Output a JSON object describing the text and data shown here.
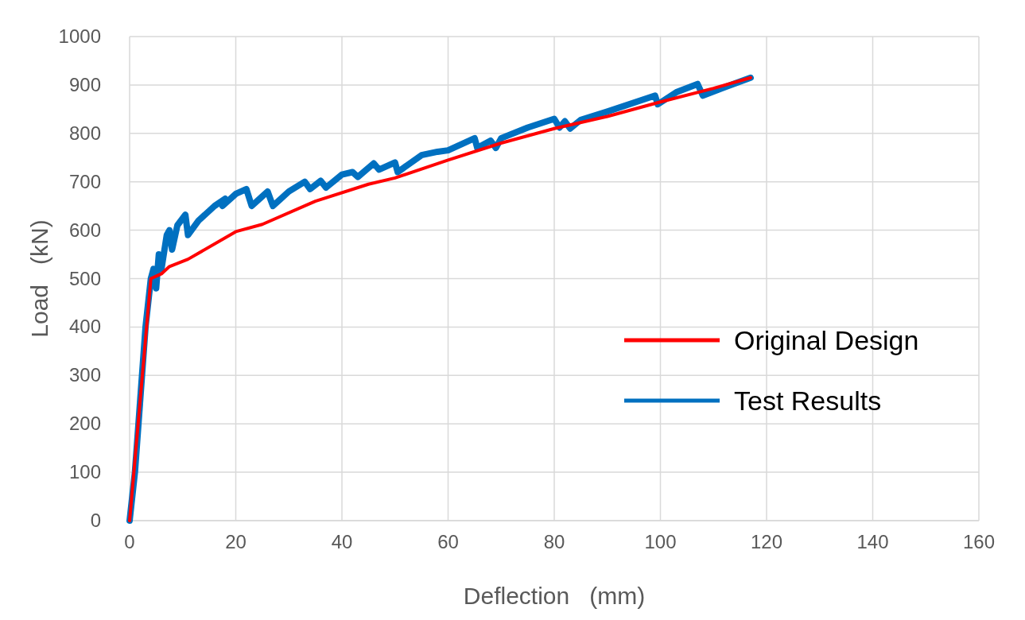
{
  "chart_data": {
    "type": "line",
    "xlabel": "Deflection   (mm)",
    "ylabel": "Load   (kN)",
    "xlim": [
      0,
      160
    ],
    "xticks": [
      0,
      20,
      40,
      60,
      80,
      100,
      120,
      140,
      160
    ],
    "ylim": [
      0,
      1000
    ],
    "yticks": [
      0,
      100,
      200,
      300,
      400,
      500,
      600,
      700,
      800,
      900,
      1000
    ],
    "grid": true,
    "legend": "right",
    "marker": "none",
    "line_style": "solid",
    "series": [
      {
        "name": "Original Design",
        "color": "#ff0000",
        "x": [
          0,
          4,
          6,
          7.5,
          11,
          20,
          25,
          35,
          45,
          50,
          60,
          70,
          80,
          90,
          100,
          110,
          117
        ],
        "values": [
          0,
          500,
          510,
          525,
          540,
          597,
          612,
          660,
          695,
          708,
          745,
          780,
          810,
          835,
          865,
          893,
          915
        ]
      },
      {
        "name": "Test Results",
        "color": "#0070c0",
        "x": [
          0,
          1,
          2,
          3,
          4,
          4.5,
          5,
          5.5,
          6,
          7,
          7.5,
          8,
          9,
          10.5,
          11,
          13,
          16,
          18,
          17.5,
          20,
          22,
          23,
          25,
          26,
          27,
          30,
          33,
          34,
          36,
          37,
          40,
          42,
          43,
          46,
          47,
          50,
          50.5,
          55,
          58,
          60,
          65,
          65.5,
          68,
          69,
          70,
          75,
          80,
          81,
          82,
          83,
          85,
          90,
          99,
          99.5,
          103,
          107,
          108,
          112,
          117
        ],
        "values": [
          0,
          100,
          250,
          400,
          500,
          520,
          480,
          550,
          520,
          590,
          600,
          560,
          610,
          632,
          590,
          620,
          650,
          665,
          650,
          675,
          685,
          650,
          670,
          680,
          650,
          680,
          700,
          685,
          702,
          688,
          715,
          720,
          710,
          738,
          725,
          740,
          720,
          755,
          762,
          765,
          790,
          770,
          785,
          770,
          790,
          812,
          830,
          812,
          825,
          810,
          828,
          845,
          878,
          860,
          885,
          902,
          878,
          895,
          915
        ]
      }
    ]
  }
}
